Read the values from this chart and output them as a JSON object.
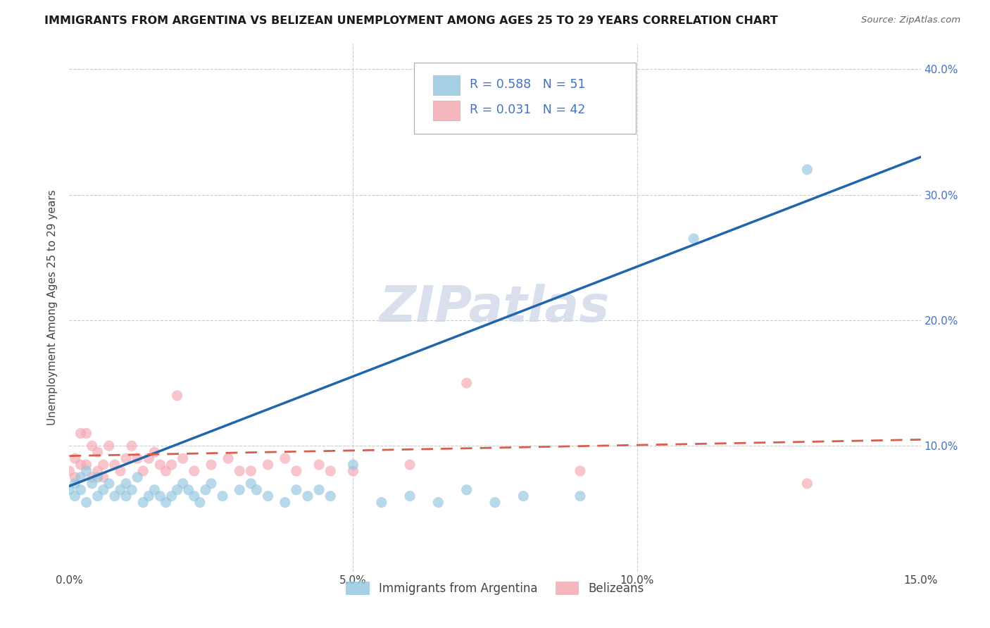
{
  "title": "IMMIGRANTS FROM ARGENTINA VS BELIZEAN UNEMPLOYMENT AMONG AGES 25 TO 29 YEARS CORRELATION CHART",
  "source": "Source: ZipAtlas.com",
  "ylabel": "Unemployment Among Ages 25 to 29 years",
  "xlim": [
    0.0,
    0.15
  ],
  "ylim": [
    0.0,
    0.42
  ],
  "xticks": [
    0.0,
    0.05,
    0.1,
    0.15
  ],
  "xtick_labels": [
    "0.0%",
    "5.0%",
    "10.0%",
    "15.0%"
  ],
  "yticks": [
    0.0,
    0.1,
    0.2,
    0.3,
    0.4
  ],
  "ytick_labels": [
    "",
    "10.0%",
    "20.0%",
    "30.0%",
    "40.0%"
  ],
  "blue_R": 0.588,
  "blue_N": 51,
  "pink_R": 0.031,
  "pink_N": 42,
  "blue_color": "#92c5de",
  "pink_color": "#f4a6b0",
  "blue_line_color": "#2166ac",
  "pink_line_color": "#d6604d",
  "blue_scatter_x": [
    0.0,
    0.001,
    0.001,
    0.002,
    0.002,
    0.003,
    0.003,
    0.004,
    0.005,
    0.005,
    0.006,
    0.007,
    0.008,
    0.009,
    0.01,
    0.01,
    0.011,
    0.012,
    0.013,
    0.014,
    0.015,
    0.016,
    0.017,
    0.018,
    0.019,
    0.02,
    0.021,
    0.022,
    0.023,
    0.024,
    0.025,
    0.027,
    0.03,
    0.032,
    0.033,
    0.035,
    0.038,
    0.04,
    0.042,
    0.044,
    0.046,
    0.05,
    0.055,
    0.06,
    0.065,
    0.07,
    0.075,
    0.08,
    0.09,
    0.11,
    0.13
  ],
  "blue_scatter_y": [
    0.065,
    0.07,
    0.06,
    0.075,
    0.065,
    0.08,
    0.055,
    0.07,
    0.075,
    0.06,
    0.065,
    0.07,
    0.06,
    0.065,
    0.07,
    0.06,
    0.065,
    0.075,
    0.055,
    0.06,
    0.065,
    0.06,
    0.055,
    0.06,
    0.065,
    0.07,
    0.065,
    0.06,
    0.055,
    0.065,
    0.07,
    0.06,
    0.065,
    0.07,
    0.065,
    0.06,
    0.055,
    0.065,
    0.06,
    0.065,
    0.06,
    0.085,
    0.055,
    0.06,
    0.055,
    0.065,
    0.055,
    0.06,
    0.06,
    0.265,
    0.32
  ],
  "pink_scatter_x": [
    0.0,
    0.001,
    0.001,
    0.002,
    0.002,
    0.003,
    0.003,
    0.004,
    0.004,
    0.005,
    0.005,
    0.006,
    0.006,
    0.007,
    0.008,
    0.009,
    0.01,
    0.011,
    0.012,
    0.013,
    0.014,
    0.015,
    0.016,
    0.017,
    0.018,
    0.019,
    0.02,
    0.022,
    0.025,
    0.028,
    0.03,
    0.032,
    0.035,
    0.038,
    0.04,
    0.044,
    0.046,
    0.05,
    0.06,
    0.07,
    0.09,
    0.13
  ],
  "pink_scatter_y": [
    0.08,
    0.09,
    0.075,
    0.085,
    0.11,
    0.11,
    0.085,
    0.1,
    0.075,
    0.095,
    0.08,
    0.075,
    0.085,
    0.1,
    0.085,
    0.08,
    0.09,
    0.1,
    0.09,
    0.08,
    0.09,
    0.095,
    0.085,
    0.08,
    0.085,
    0.14,
    0.09,
    0.08,
    0.085,
    0.09,
    0.08,
    0.08,
    0.085,
    0.09,
    0.08,
    0.085,
    0.08,
    0.08,
    0.085,
    0.15,
    0.08,
    0.07
  ],
  "watermark": "ZIPatlas",
  "legend_label_blue": "Immigrants from Argentina",
  "legend_label_pink": "Belizeans",
  "background_color": "#ffffff",
  "grid_color": "#cccccc",
  "blue_line_x0": 0.0,
  "blue_line_y0": 0.068,
  "blue_line_x1": 0.15,
  "blue_line_y1": 0.33,
  "pink_line_x0": 0.0,
  "pink_line_y0": 0.092,
  "pink_line_x1": 0.15,
  "pink_line_y1": 0.105
}
